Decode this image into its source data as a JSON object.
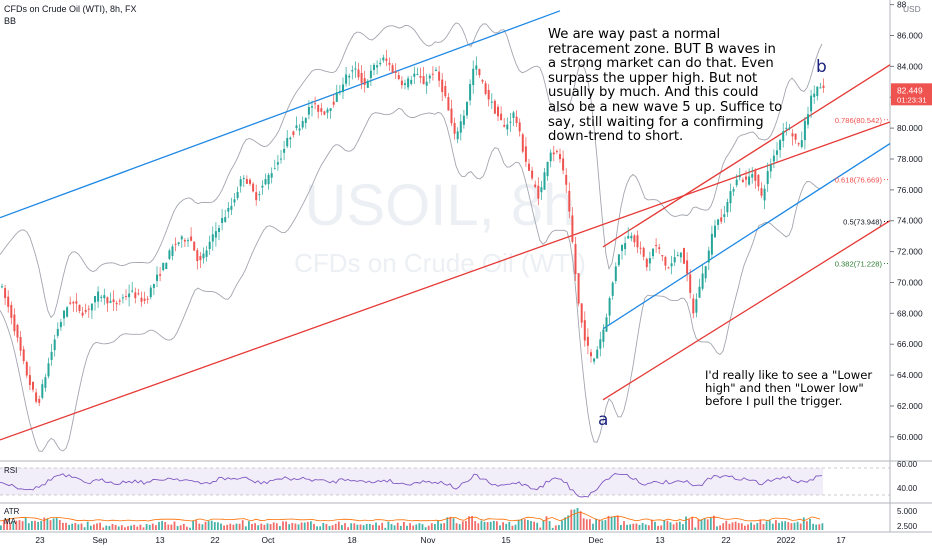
{
  "header": {
    "symbol_line": "CFDs on Crude Oil (WTI), 8h, FX",
    "indicator": "BB",
    "currency": "USD"
  },
  "watermark": {
    "ticker": "USOIL, 8h",
    "name": "CFDs on Crude Oil (WTI)"
  },
  "annotations": {
    "main_note": "We are way past a normal retracement zone. BUT B waves in a strong market can do that. Even surpass the upper high. But not usually by much. And this could also be a new wave 5 up. Suffice to say, still waiting for a confirming down-trend to short.",
    "side_note": "I'd really like to see a \"Lower high\" and then \"Lower low\" before I pull the trigger.",
    "wave_a": "a",
    "wave_b": "b"
  },
  "price_badge": {
    "price": "82.449",
    "countdown": "01:23:31",
    "color": "#ef5350"
  },
  "fib_levels": [
    {
      "ratio": "0.786",
      "price": 80.542,
      "label": "0.786(80.542)",
      "color": "#ef5350"
    },
    {
      "ratio": "0.618",
      "price": 76.669,
      "label": "0.618(76.669)",
      "color": "#ef5350"
    },
    {
      "ratio": "0.5",
      "price": 73.948,
      "label": "0.5(73.948)",
      "color": "#131722"
    },
    {
      "ratio": "0.382",
      "price": 71.228,
      "label": "0.382(71.228)",
      "color": "#2e7d32"
    }
  ],
  "panels": {
    "rsi_label": "RSI",
    "atr_label": "ATR",
    "ma_label": "MA"
  },
  "chart_data": {
    "type": "candlestick",
    "price_axis": {
      "min": 58.5,
      "max": 88.3,
      "ticks": [
        60,
        62,
        64,
        66,
        68,
        70,
        72,
        74,
        76,
        78,
        80,
        82,
        84,
        86,
        88
      ],
      "tick_labels": [
        "60.000",
        "62.000",
        "64.000",
        "66.000",
        "68.000",
        "70.000",
        "72.000",
        "74.000",
        "76.000",
        "78.000",
        "80.000",
        "82.000",
        "84.000",
        "86.000",
        "88"
      ]
    },
    "time_axis": {
      "labels": [
        "23",
        "Sep",
        "13",
        "22",
        "Oct",
        "18",
        "Nov",
        "15",
        "Dec",
        "13",
        "22",
        "2022",
        "17"
      ]
    },
    "rsi_axis": {
      "ticks": [
        "60.00",
        "40.00"
      ]
    },
    "atr_axis": {
      "ticks": [
        "5.000",
        "2.500"
      ]
    },
    "price_path": [
      [
        0,
        70.0
      ],
      [
        12,
        67.8
      ],
      [
        25,
        64.5
      ],
      [
        38,
        62.0
      ],
      [
        48,
        64.5
      ],
      [
        58,
        67.0
      ],
      [
        70,
        68.8
      ],
      [
        85,
        68.0
      ],
      [
        100,
        69.3
      ],
      [
        115,
        68.5
      ],
      [
        130,
        69.4
      ],
      [
        145,
        68.8
      ],
      [
        160,
        70.6
      ],
      [
        175,
        72.5
      ],
      [
        190,
        73.0
      ],
      [
        200,
        71.2
      ],
      [
        210,
        72.5
      ],
      [
        220,
        73.8
      ],
      [
        232,
        75.0
      ],
      [
        244,
        77.0
      ],
      [
        256,
        75.5
      ],
      [
        268,
        76.8
      ],
      [
        280,
        78.0
      ],
      [
        290,
        79.5
      ],
      [
        300,
        80.2
      ],
      [
        312,
        81.5
      ],
      [
        324,
        81.0
      ],
      [
        335,
        81.8
      ],
      [
        345,
        83.2
      ],
      [
        355,
        83.8
      ],
      [
        365,
        82.8
      ],
      [
        375,
        84.0
      ],
      [
        385,
        84.5
      ],
      [
        395,
        83.6
      ],
      [
        405,
        82.8
      ],
      [
        415,
        83.5
      ],
      [
        425,
        82.9
      ],
      [
        435,
        83.8
      ],
      [
        445,
        82.2
      ],
      [
        455,
        79.4
      ],
      [
        465,
        81.0
      ],
      [
        475,
        84.2
      ],
      [
        485,
        82.5
      ],
      [
        495,
        81.2
      ],
      [
        505,
        80.0
      ],
      [
        515,
        81.0
      ],
      [
        525,
        78.2
      ],
      [
        533,
        76.5
      ],
      [
        540,
        75.5
      ],
      [
        550,
        78.6
      ],
      [
        560,
        78.2
      ],
      [
        567,
        76.0
      ],
      [
        573,
        72.5
      ],
      [
        580,
        68.0
      ],
      [
        587,
        66.0
      ],
      [
        593,
        64.8
      ],
      [
        598,
        65.8
      ],
      [
        604,
        67.0
      ],
      [
        612,
        69.5
      ],
      [
        618,
        71.8
      ],
      [
        626,
        72.8
      ],
      [
        632,
        73.2
      ],
      [
        640,
        72.2
      ],
      [
        648,
        71.0
      ],
      [
        655,
        72.5
      ],
      [
        662,
        71.8
      ],
      [
        668,
        70.8
      ],
      [
        675,
        71.5
      ],
      [
        682,
        72.2
      ],
      [
        688,
        70.2
      ],
      [
        694,
        68.0
      ],
      [
        700,
        69.8
      ],
      [
        708,
        71.6
      ],
      [
        715,
        73.8
      ],
      [
        722,
        74.2
      ],
      [
        730,
        75.5
      ],
      [
        738,
        77.0
      ],
      [
        746,
        76.5
      ],
      [
        754,
        77.2
      ],
      [
        762,
        75.5
      ],
      [
        770,
        77.5
      ],
      [
        778,
        78.8
      ],
      [
        786,
        80.3
      ],
      [
        794,
        79.5
      ],
      [
        800,
        78.6
      ],
      [
        806,
        80.5
      ],
      [
        812,
        82.0
      ],
      [
        818,
        82.7
      ],
      [
        823,
        82.4
      ]
    ]
  }
}
